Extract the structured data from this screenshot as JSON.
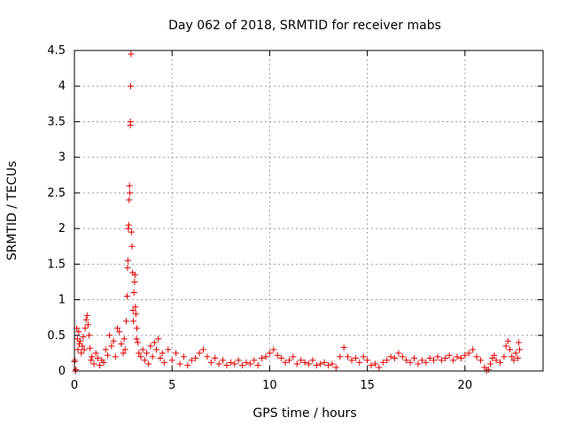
{
  "chart_data": {
    "type": "scatter",
    "title": "Day 062 of 2018, SRMTID for receiver mabs",
    "xlabel": "GPS time / hours",
    "ylabel": "SRMTID / TECUs",
    "xlim": [
      0,
      24
    ],
    "ylim": [
      0,
      4.5
    ],
    "xticks": [
      0,
      5,
      10,
      15,
      20
    ],
    "yticks": [
      0,
      0.5,
      1,
      1.5,
      2,
      2.5,
      3,
      3.5,
      4,
      4.5
    ],
    "xtick_labels": [
      "0",
      "5",
      "10",
      "15",
      "20"
    ],
    "ytick_labels": [
      "0",
      "0.5",
      "1",
      "1.5",
      "2",
      "2.5",
      "3",
      "3.5",
      "4",
      "4.5"
    ],
    "grid": true,
    "marker": "+",
    "color": "#e00000",
    "series": [
      {
        "name": "SRMTID",
        "points": [
          [
            0.0,
            0.13
          ],
          [
            0.02,
            0.15
          ],
          [
            0.05,
            0.0
          ],
          [
            0.08,
            0.02
          ],
          [
            0.12,
            0.6
          ],
          [
            0.15,
            0.45
          ],
          [
            0.18,
            0.3
          ],
          [
            0.22,
            0.55
          ],
          [
            0.25,
            0.38
          ],
          [
            0.3,
            0.42
          ],
          [
            0.35,
            0.25
          ],
          [
            0.4,
            0.35
          ],
          [
            0.45,
            0.48
          ],
          [
            0.5,
            0.3
          ],
          [
            0.55,
            0.6
          ],
          [
            0.6,
            0.72
          ],
          [
            0.65,
            0.78
          ],
          [
            0.7,
            0.65
          ],
          [
            0.75,
            0.5
          ],
          [
            0.8,
            0.32
          ],
          [
            0.85,
            0.15
          ],
          [
            0.9,
            0.2
          ],
          [
            1.0,
            0.1
          ],
          [
            1.1,
            0.25
          ],
          [
            1.2,
            0.18
          ],
          [
            1.3,
            0.08
          ],
          [
            1.4,
            0.15
          ],
          [
            1.5,
            0.12
          ],
          [
            1.6,
            0.3
          ],
          [
            1.7,
            0.22
          ],
          [
            1.8,
            0.5
          ],
          [
            1.9,
            0.35
          ],
          [
            2.0,
            0.42
          ],
          [
            2.1,
            0.2
          ],
          [
            2.2,
            0.6
          ],
          [
            2.3,
            0.55
          ],
          [
            2.4,
            0.38
          ],
          [
            2.5,
            0.25
          ],
          [
            2.55,
            0.45
          ],
          [
            2.6,
            0.3
          ],
          [
            2.65,
            0.7
          ],
          [
            2.7,
            1.05
          ],
          [
            2.72,
            1.45
          ],
          [
            2.74,
            1.55
          ],
          [
            2.76,
            2.0
          ],
          [
            2.78,
            2.05
          ],
          [
            2.8,
            2.4
          ],
          [
            2.82,
            2.6
          ],
          [
            2.84,
            2.5
          ],
          [
            2.86,
            3.45
          ],
          [
            2.87,
            3.5
          ],
          [
            2.88,
            4.0
          ],
          [
            2.9,
            4.45
          ],
          [
            2.92,
            1.95
          ],
          [
            2.95,
            1.75
          ],
          [
            2.98,
            1.38
          ],
          [
            3.0,
            0.85
          ],
          [
            3.02,
            0.7
          ],
          [
            3.05,
            1.1
          ],
          [
            3.08,
            1.25
          ],
          [
            3.1,
            1.35
          ],
          [
            3.12,
            0.9
          ],
          [
            3.15,
            0.8
          ],
          [
            3.18,
            0.45
          ],
          [
            3.2,
            0.6
          ],
          [
            3.25,
            0.4
          ],
          [
            3.3,
            0.25
          ],
          [
            3.4,
            0.2
          ],
          [
            3.5,
            0.3
          ],
          [
            3.6,
            0.15
          ],
          [
            3.7,
            0.25
          ],
          [
            3.8,
            0.1
          ],
          [
            3.9,
            0.35
          ],
          [
            4.0,
            0.2
          ],
          [
            4.1,
            0.4
          ],
          [
            4.2,
            0.3
          ],
          [
            4.3,
            0.45
          ],
          [
            4.4,
            0.18
          ],
          [
            4.5,
            0.25
          ],
          [
            4.6,
            0.12
          ],
          [
            4.8,
            0.3
          ],
          [
            5.0,
            0.15
          ],
          [
            5.2,
            0.25
          ],
          [
            5.4,
            0.1
          ],
          [
            5.6,
            0.2
          ],
          [
            5.8,
            0.08
          ],
          [
            6.0,
            0.15
          ],
          [
            6.2,
            0.18
          ],
          [
            6.4,
            0.25
          ],
          [
            6.6,
            0.3
          ],
          [
            6.8,
            0.2
          ],
          [
            7.0,
            0.12
          ],
          [
            7.2,
            0.18
          ],
          [
            7.4,
            0.1
          ],
          [
            7.6,
            0.15
          ],
          [
            7.8,
            0.08
          ],
          [
            8.0,
            0.12
          ],
          [
            8.2,
            0.1
          ],
          [
            8.4,
            0.15
          ],
          [
            8.6,
            0.08
          ],
          [
            8.8,
            0.12
          ],
          [
            9.0,
            0.1
          ],
          [
            9.2,
            0.15
          ],
          [
            9.4,
            0.08
          ],
          [
            9.6,
            0.18
          ],
          [
            9.8,
            0.2
          ],
          [
            10.0,
            0.25
          ],
          [
            10.2,
            0.3
          ],
          [
            10.4,
            0.22
          ],
          [
            10.6,
            0.18
          ],
          [
            10.8,
            0.12
          ],
          [
            11.0,
            0.15
          ],
          [
            11.2,
            0.2
          ],
          [
            11.4,
            0.1
          ],
          [
            11.6,
            0.15
          ],
          [
            11.8,
            0.12
          ],
          [
            12.0,
            0.1
          ],
          [
            12.2,
            0.15
          ],
          [
            12.4,
            0.08
          ],
          [
            12.6,
            0.1
          ],
          [
            12.8,
            0.12
          ],
          [
            13.0,
            0.08
          ],
          [
            13.2,
            0.1
          ],
          [
            13.4,
            0.05
          ],
          [
            13.6,
            0.2
          ],
          [
            13.8,
            0.33
          ],
          [
            14.0,
            0.2
          ],
          [
            14.2,
            0.15
          ],
          [
            14.4,
            0.18
          ],
          [
            14.6,
            0.12
          ],
          [
            14.8,
            0.2
          ],
          [
            15.0,
            0.15
          ],
          [
            15.2,
            0.08
          ],
          [
            15.4,
            0.1
          ],
          [
            15.6,
            0.05
          ],
          [
            15.8,
            0.12
          ],
          [
            16.0,
            0.15
          ],
          [
            16.2,
            0.2
          ],
          [
            16.4,
            0.18
          ],
          [
            16.6,
            0.25
          ],
          [
            16.8,
            0.2
          ],
          [
            17.0,
            0.15
          ],
          [
            17.2,
            0.12
          ],
          [
            17.4,
            0.18
          ],
          [
            17.6,
            0.1
          ],
          [
            17.8,
            0.15
          ],
          [
            18.0,
            0.12
          ],
          [
            18.2,
            0.18
          ],
          [
            18.4,
            0.15
          ],
          [
            18.6,
            0.2
          ],
          [
            18.8,
            0.15
          ],
          [
            19.0,
            0.18
          ],
          [
            19.2,
            0.22
          ],
          [
            19.4,
            0.15
          ],
          [
            19.6,
            0.2
          ],
          [
            19.8,
            0.18
          ],
          [
            20.0,
            0.22
          ],
          [
            20.2,
            0.25
          ],
          [
            20.4,
            0.3
          ],
          [
            20.6,
            0.2
          ],
          [
            20.8,
            0.15
          ],
          [
            21.0,
            0.05
          ],
          [
            21.1,
            0.0
          ],
          [
            21.2,
            0.02
          ],
          [
            21.3,
            0.1
          ],
          [
            21.4,
            0.18
          ],
          [
            21.5,
            0.22
          ],
          [
            21.6,
            0.15
          ],
          [
            21.8,
            0.12
          ],
          [
            22.0,
            0.2
          ],
          [
            22.1,
            0.35
          ],
          [
            22.2,
            0.42
          ],
          [
            22.3,
            0.3
          ],
          [
            22.4,
            0.2
          ],
          [
            22.5,
            0.15
          ],
          [
            22.6,
            0.25
          ],
          [
            22.7,
            0.18
          ],
          [
            22.75,
            0.4
          ],
          [
            22.8,
            0.3
          ]
        ]
      }
    ]
  }
}
